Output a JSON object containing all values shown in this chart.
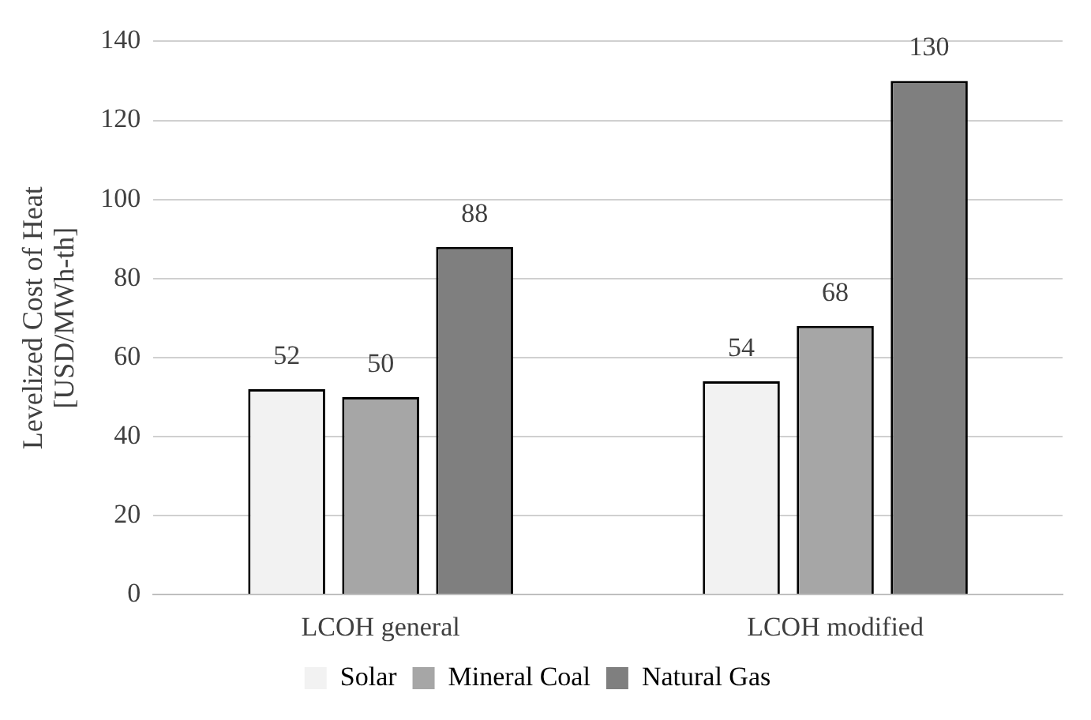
{
  "chart_data": {
    "type": "bar",
    "ylabel": "Levelized Cost of Heat [USD/MWh-th]",
    "categories": [
      "LCOH general",
      "LCOH modified"
    ],
    "series": [
      {
        "name": "Solar",
        "color": "#f2f2f2",
        "values": [
          52,
          54
        ]
      },
      {
        "name": "Mineral Coal",
        "color": "#a6a6a6",
        "values": [
          50,
          68
        ]
      },
      {
        "name": "Natural Gas",
        "color": "#7f7f7f",
        "values": [
          88,
          130
        ]
      }
    ],
    "ylim": [
      0,
      140
    ],
    "yticks": [
      0,
      20,
      40,
      60,
      80,
      100,
      120,
      140
    ],
    "grid": "y",
    "legend": "bottom",
    "data_labels": true
  }
}
